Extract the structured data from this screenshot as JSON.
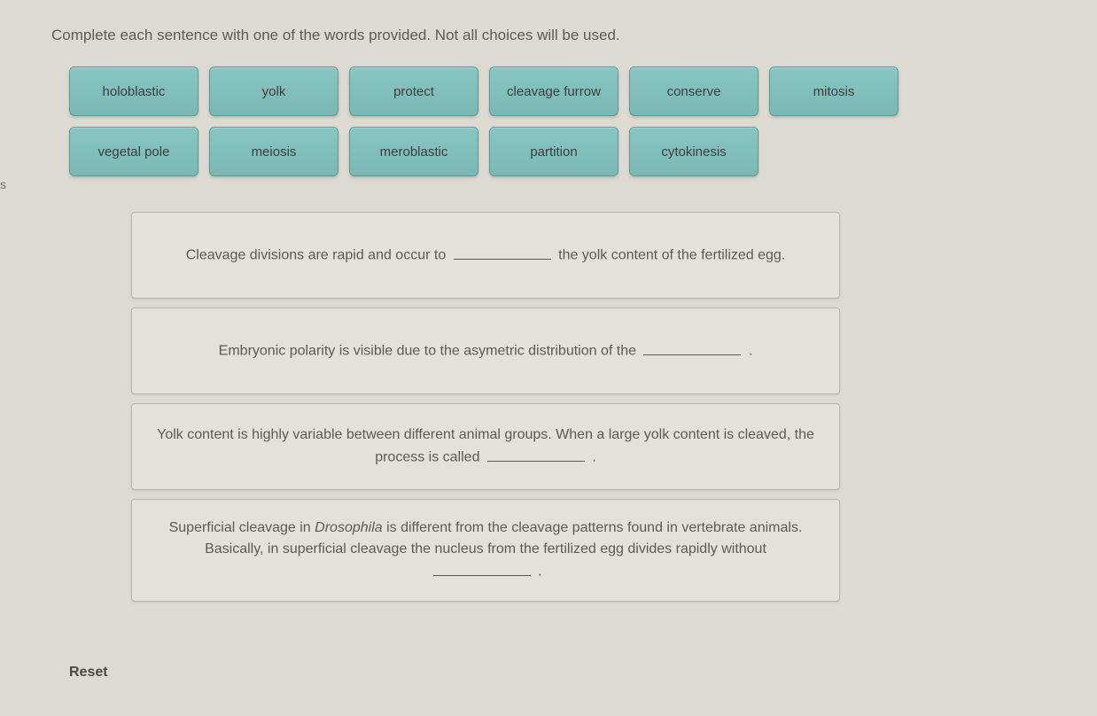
{
  "instructions": "Complete each sentence with one of the words provided. Not all choices will be used.",
  "word_bank": {
    "row1": [
      {
        "label": "holoblastic"
      },
      {
        "label": "yolk"
      },
      {
        "label": "protect"
      },
      {
        "label": "cleavage furrow"
      },
      {
        "label": "conserve"
      },
      {
        "label": "mitosis"
      }
    ],
    "row2": [
      {
        "label": "vegetal pole"
      },
      {
        "label": "meiosis"
      },
      {
        "label": "meroblastic"
      },
      {
        "label": "partition"
      },
      {
        "label": "cytokinesis"
      }
    ]
  },
  "sentences": {
    "s1": {
      "part1": "Cleavage divisions are rapid and occur to ",
      "part2": " the yolk content of the fertilized egg."
    },
    "s2": {
      "part1": "Embryonic polarity is visible due to the asymetric distribution of the ",
      "part2": " ."
    },
    "s3": {
      "part1": "Yolk content is highly variable between different animal groups. When a large yolk content is cleaved, the process is called ",
      "part2": " ."
    },
    "s4": {
      "part1": "Superficial cleavage in ",
      "italic": "Drosophila",
      "part2": " is different from the cleavage patterns found in vertebrate animals. Basically, in superficial cleavage the nucleus from the fertilized egg divides rapidly without ",
      "part3": " ."
    }
  },
  "reset_label": "Reset",
  "side_label": "s",
  "colors": {
    "background": "#dcdad1",
    "chip_bg_top": "#87c6c3",
    "chip_bg_bottom": "#7bb8b5",
    "chip_border": "#5a9996",
    "text": "#5c5a54",
    "box_bg": "#e3e1d8",
    "box_border": "#b5b3aa"
  }
}
